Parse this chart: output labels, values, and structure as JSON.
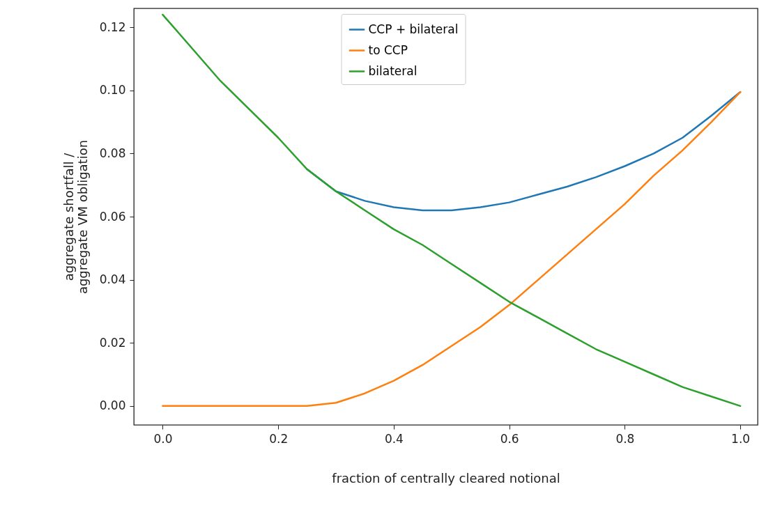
{
  "chart_data": {
    "type": "line",
    "xlabel": "fraction of centrally cleared notional",
    "ylabel": "aggregate shortfall /\naggregate VM obligation",
    "x": [
      0,
      0.1,
      0.2,
      0.25,
      0.3,
      0.35,
      0.4,
      0.45,
      0.5,
      0.55,
      0.6,
      0.65,
      0.7,
      0.75,
      0.8,
      0.85,
      0.9,
      0.95,
      1.0
    ],
    "series": [
      {
        "name": "CCP + bilateral",
        "color": "#1f77b4",
        "values": [
          null,
          null,
          null,
          0.075,
          0.068,
          0.065,
          0.063,
          0.062,
          0.062,
          0.063,
          0.0645,
          0.067,
          0.0695,
          0.0725,
          0.076,
          0.08,
          0.085,
          0.092,
          0.0995
        ]
      },
      {
        "name": "to CCP",
        "color": "#ff7f0e",
        "values": [
          0,
          0,
          0,
          0,
          0.001,
          0.004,
          0.008,
          0.013,
          0.019,
          0.025,
          0.032,
          0.04,
          0.048,
          0.056,
          0.064,
          0.073,
          0.081,
          0.09,
          0.0995
        ]
      },
      {
        "name": "bilateral",
        "color": "#2ca02c",
        "values": [
          0.124,
          0.103,
          0.085,
          0.075,
          0.068,
          0.062,
          0.056,
          0.051,
          0.045,
          0.039,
          0.033,
          0.028,
          0.023,
          0.018,
          0.014,
          0.01,
          0.006,
          0.003,
          0
        ]
      }
    ],
    "xlim": [
      -0.05,
      1.03
    ],
    "ylim": [
      -0.006,
      0.126
    ],
    "xticks": [
      {
        "value": 0,
        "label": "0.0"
      },
      {
        "value": 0.2,
        "label": "0.2"
      },
      {
        "value": 0.4,
        "label": "0.4"
      },
      {
        "value": 0.6,
        "label": "0.6"
      },
      {
        "value": 0.8,
        "label": "0.8"
      },
      {
        "value": 1,
        "label": "1.0"
      }
    ],
    "yticks": [
      {
        "value": 0,
        "label": "0.00"
      },
      {
        "value": 0.02,
        "label": "0.02"
      },
      {
        "value": 0.04,
        "label": "0.04"
      },
      {
        "value": 0.06,
        "label": "0.06"
      },
      {
        "value": 0.08,
        "label": "0.08"
      },
      {
        "value": 0.1,
        "label": "0.10"
      },
      {
        "value": 0.12,
        "label": "0.12"
      }
    ],
    "grid": false,
    "legend": "top"
  }
}
